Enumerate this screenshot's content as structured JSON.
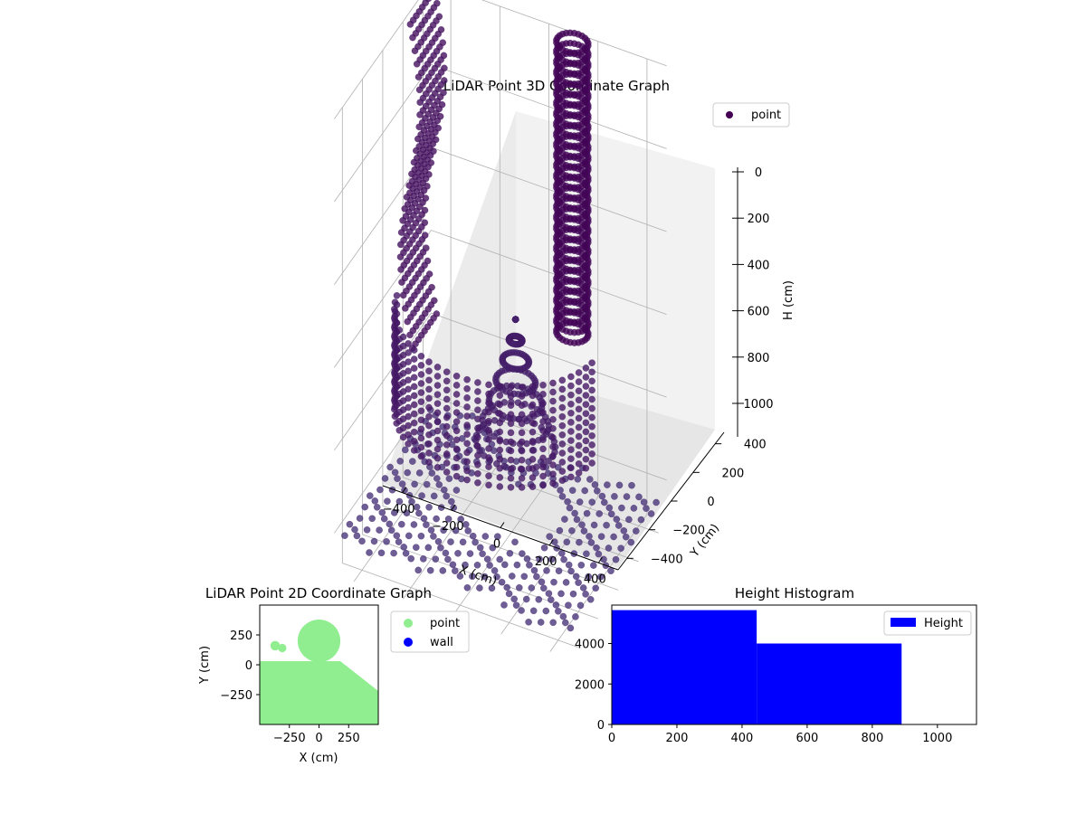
{
  "chart_data": [
    {
      "type": "scatter",
      "projection": "3d",
      "title": "LiDAR Point 3D Coordinate Graph",
      "xlabel": "X (cm)",
      "ylabel": "Y (cm)",
      "zlabel": "H (cm)",
      "x_ticks": [
        "−400",
        "−200",
        "0",
        "200",
        "400"
      ],
      "y_ticks": [
        "−400",
        "−200",
        "0",
        "200",
        "400"
      ],
      "z_ticks": [
        "0",
        "200",
        "400",
        "600",
        "800",
        "1000"
      ],
      "xlim": [
        -480,
        480
      ],
      "ylim": [
        -480,
        480
      ],
      "zlim": [
        1100,
        0
      ],
      "z_inverted": true,
      "grid": true,
      "legend": {
        "position": "top-right",
        "entries": [
          {
            "name": "point",
            "color": "#440154"
          }
        ]
      },
      "series": [
        {
          "name": "point",
          "colormap": "viridis (dark purple, low range)",
          "structures": [
            {
              "part": "floor",
              "x_range": [
                -450,
                450
              ],
              "y_range": [
                -450,
                450
              ],
              "h_approx": 1050
            },
            {
              "part": "arc-wall",
              "center": [
                0,
                0
              ],
              "radius_approx": 400,
              "h_range": [
                550,
                800
              ]
            },
            {
              "part": "left-tall-wall",
              "x": -450,
              "y_range": [
                200,
                450
              ],
              "h_range": [
                0,
                800
              ]
            },
            {
              "part": "cylinder",
              "center": [
                120,
                420
              ],
              "radius_approx": 60,
              "h_range": [
                0,
                700
              ]
            },
            {
              "part": "dome",
              "center": [
                0,
                150
              ],
              "radius_approx": 150,
              "h_top": 600
            }
          ]
        }
      ]
    },
    {
      "type": "scatter",
      "title": "LiDAR Point 2D Coordinate Graph",
      "xlabel": "X (cm)",
      "ylabel": "Y (cm)",
      "x_ticks": [
        "−250",
        "0",
        "250"
      ],
      "y_ticks": [
        "250",
        "0",
        "−250"
      ],
      "xlim": [
        -500,
        500
      ],
      "ylim": [
        -500,
        500
      ],
      "legend": {
        "position": "outside-right",
        "entries": [
          {
            "name": "point",
            "color": "#90ee90"
          },
          {
            "name": "wall",
            "color": "#0000ff"
          }
        ]
      },
      "series": [
        {
          "name": "point",
          "color": "#90ee90",
          "regions": [
            {
              "shape": "rect",
              "x": [
                -500,
                500
              ],
              "y": [
                -500,
                30
              ]
            },
            {
              "shape": "circle",
              "center": [
                0,
                200
              ],
              "r": 180
            },
            {
              "shape": "circle",
              "center": [
                -370,
                160
              ],
              "r": 40
            },
            {
              "shape": "circle",
              "center": [
                -310,
                140
              ],
              "r": 35
            }
          ]
        },
        {
          "name": "wall",
          "color": "#0000ff",
          "points": []
        }
      ]
    },
    {
      "type": "bar",
      "subtype": "histogram",
      "title": "Height Histogram",
      "xlim": [
        0,
        1120
      ],
      "ylim": [
        0,
        5900
      ],
      "x_ticks": [
        "0",
        "200",
        "400",
        "600",
        "800",
        "1000"
      ],
      "y_ticks": [
        "0",
        "2000",
        "4000"
      ],
      "legend": {
        "position": "top-right",
        "entries": [
          {
            "name": "Height",
            "color": "#0000ff"
          }
        ]
      },
      "bins": [
        {
          "x0": 0,
          "x1": 445,
          "count": 5650
        },
        {
          "x0": 445,
          "x1": 890,
          "count": 4000
        }
      ],
      "color": "#0000ff"
    }
  ]
}
